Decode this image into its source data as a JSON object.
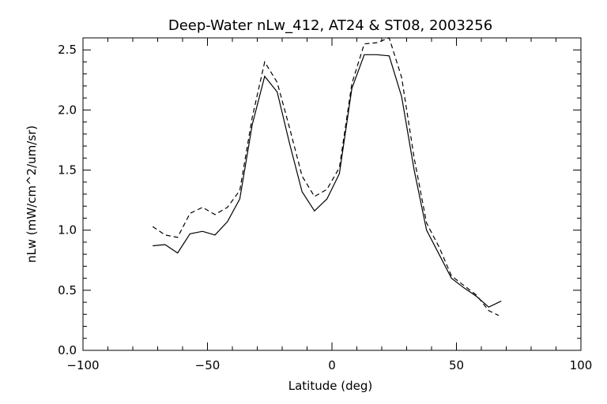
{
  "chart_data": {
    "type": "line",
    "title": "Deep-Water nLw_412, AT24 & ST08, 2003256",
    "xlabel": "Latitude (deg)",
    "ylabel": "nLw (mW/cm^2/um/sr)",
    "xlim": [
      -100,
      100
    ],
    "ylim": [
      0.0,
      2.6
    ],
    "x_ticks": [
      -100,
      -50,
      0,
      50,
      100
    ],
    "x_tick_labels": [
      "−100",
      "−50",
      "0",
      "50",
      "100"
    ],
    "y_ticks": [
      0.0,
      0.5,
      1.0,
      1.5,
      2.0,
      2.5
    ],
    "y_tick_labels": [
      "0.0",
      "0.5",
      "1.0",
      "1.5",
      "2.0",
      "2.5"
    ],
    "series": [
      {
        "name": "AT24",
        "style": "solid",
        "x": [
          -72,
          -67,
          -62,
          -57,
          -52,
          -47,
          -42,
          -37,
          -32,
          -27,
          -22,
          -17,
          -12,
          -7,
          -2,
          3,
          8,
          13,
          18,
          23,
          28,
          33,
          38,
          43,
          48,
          53,
          58,
          63,
          68
        ],
        "y": [
          0.87,
          0.88,
          0.81,
          0.97,
          0.99,
          0.96,
          1.07,
          1.26,
          1.88,
          2.28,
          2.15,
          1.72,
          1.32,
          1.16,
          1.26,
          1.47,
          2.18,
          2.46,
          2.46,
          2.45,
          2.11,
          1.5,
          1.0,
          0.8,
          0.6,
          0.52,
          0.45,
          0.36,
          0.41
        ]
      },
      {
        "name": "ST08",
        "style": "dashed",
        "x": [
          -72,
          -67,
          -62,
          -57,
          -52,
          -47,
          -42,
          -37,
          -32,
          -27,
          -22,
          -17,
          -12,
          -7,
          -2,
          3,
          8,
          13,
          18,
          23,
          28,
          33,
          38,
          43,
          48,
          53,
          58,
          63,
          67
        ],
        "y": [
          1.03,
          0.96,
          0.94,
          1.14,
          1.19,
          1.13,
          1.19,
          1.33,
          1.94,
          2.4,
          2.23,
          1.85,
          1.45,
          1.28,
          1.34,
          1.52,
          2.22,
          2.55,
          2.56,
          2.6,
          2.27,
          1.6,
          1.06,
          0.86,
          0.62,
          0.54,
          0.46,
          0.33,
          0.29
        ]
      }
    ]
  }
}
